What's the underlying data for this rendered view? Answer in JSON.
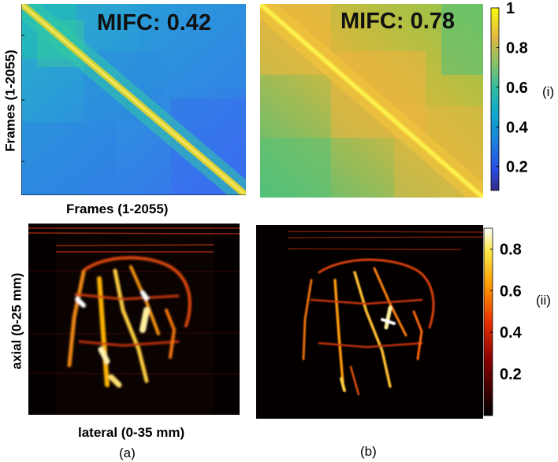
{
  "chart_data": [
    {
      "type": "heatmap",
      "id": "a-i",
      "annotation": "MIFC: 0.42",
      "xlabel": "Frames (1-2055)",
      "ylabel": "Frames (1-2055)",
      "mifc_value": 0.42,
      "colormap": "parula",
      "clim": [
        0.1,
        1
      ]
    },
    {
      "type": "heatmap",
      "id": "b-i",
      "annotation": "MIFC: 0.78",
      "xlabel": "",
      "ylabel": "",
      "mifc_value": 0.78,
      "colormap": "parula",
      "clim": [
        0.1,
        1
      ]
    },
    {
      "type": "heatmap",
      "id": "a-ii",
      "xlabel": "lateral (0-35 mm)",
      "ylabel": "axial (0-25 mm)",
      "colormap": "hot",
      "clim": [
        0,
        0.9
      ]
    },
    {
      "type": "heatmap",
      "id": "b-ii",
      "xlabel": "",
      "ylabel": "",
      "colormap": "hot",
      "clim": [
        0,
        0.9
      ]
    }
  ],
  "colorbars": {
    "top": {
      "label": "(i)",
      "ticks": [
        "1",
        "0.8",
        "0.6",
        "0.4",
        "0.2"
      ],
      "tick_values": [
        1,
        0.8,
        0.6,
        0.4,
        0.2
      ],
      "range": [
        0.08,
        1
      ]
    },
    "bottom": {
      "label": "(ii)",
      "ticks": [
        "0.8",
        "0.6",
        "0.4",
        "0.2"
      ],
      "tick_values": [
        0.8,
        0.6,
        0.4,
        0.2
      ],
      "range": [
        0,
        0.9
      ]
    }
  },
  "panel_labels": {
    "a": "(a)",
    "b": "(b)"
  },
  "colors": {
    "parula_low": "#352a87",
    "parula_mid": "#1eb8a5",
    "parula_high": "#f9fb0e",
    "hot_low": "#000000",
    "hot_mid": "#e03000",
    "hot_high": "#ffffff"
  }
}
